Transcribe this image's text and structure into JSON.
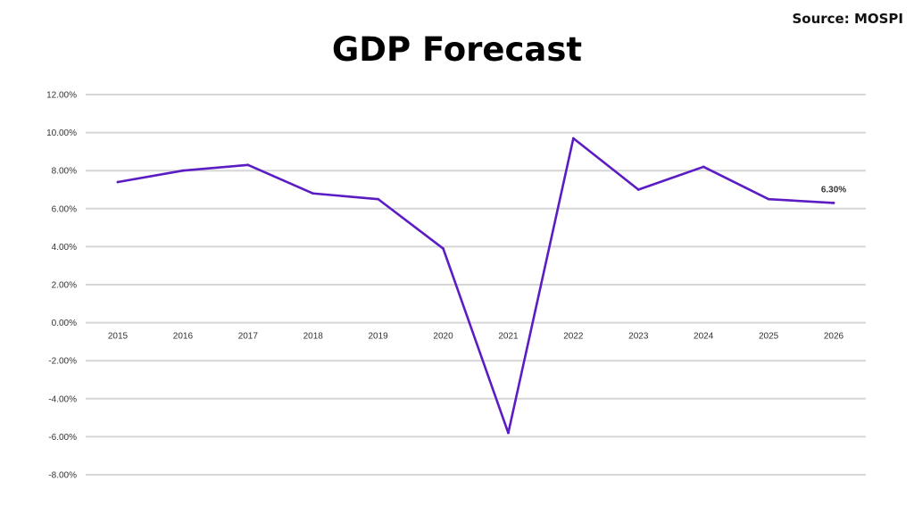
{
  "header": {
    "source": "Source: MOSPI"
  },
  "chart_data": {
    "type": "line",
    "title": "GDP Forecast",
    "xlabel": "",
    "ylabel": "",
    "categories": [
      "2015",
      "2016",
      "2017",
      "2018",
      "2019",
      "2020",
      "2021",
      "2022",
      "2023",
      "2024",
      "2025",
      "2026"
    ],
    "series": [
      {
        "values": [
          7.4,
          8.0,
          8.3,
          6.8,
          6.5,
          3.9,
          -5.8,
          9.7,
          7.0,
          8.2,
          6.5,
          6.3
        ]
      }
    ],
    "ylim": [
      -8,
      12
    ],
    "yticks": [
      12,
      10,
      8,
      6,
      4,
      2,
      0,
      -2,
      -4,
      -6,
      -8
    ],
    "ytick_labels": [
      "12.00%",
      "10.00%",
      "8.00%",
      "6.00%",
      "4.00%",
      "2.00%",
      "0.00%",
      "-2.00%",
      "-4.00%",
      "-6.00%",
      "-8.00%"
    ],
    "data_labels": [
      {
        "index": 11,
        "text": "6.30%"
      }
    ],
    "grid": true,
    "line_color": "#5b1cc4",
    "grid_color": "#d6d6d6"
  }
}
